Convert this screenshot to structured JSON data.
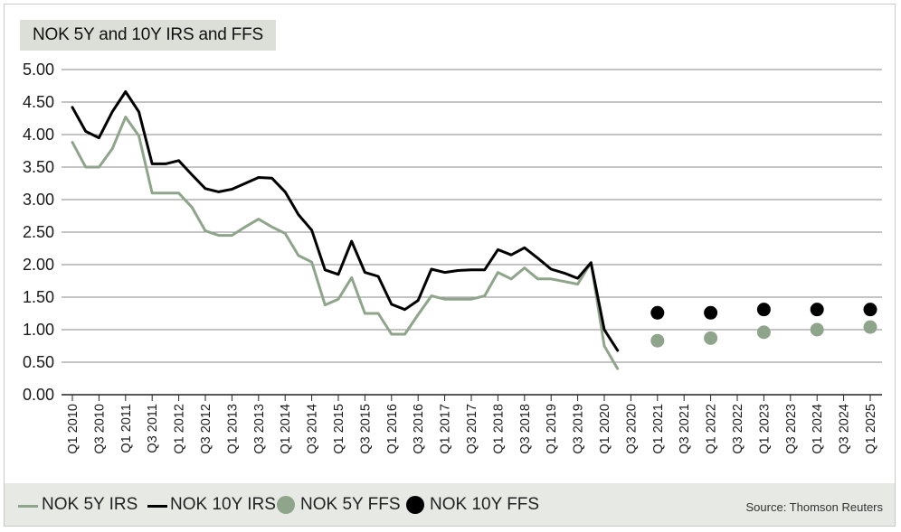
{
  "title": "NOK 5Y and 10Y IRS and FFS",
  "source": "Source: Thomson Reuters",
  "colors": {
    "irs5": "#8fa58b",
    "irs10": "#000000",
    "ffs5": "#8fa58b",
    "ffs10": "#000000",
    "grid": "#8a8a8a",
    "title_bg": "#dcdfd8",
    "footer_bg": "#e7e9e4"
  },
  "legend": [
    {
      "label": "NOK 5Y IRS",
      "kind": "line",
      "color": "#8fa58b"
    },
    {
      "label": "NOK 10Y IRS",
      "kind": "line",
      "color": "#000000"
    },
    {
      "label": "NOK 5Y FFS",
      "kind": "dot",
      "color": "#8fa58b"
    },
    {
      "label": "NOK 10Y FFS",
      "kind": "dot",
      "color": "#000000"
    }
  ],
  "chart_data": {
    "type": "line",
    "ylim": [
      0,
      5
    ],
    "y_ticks": [
      "0.00",
      "0.50",
      "1.00",
      "1.50",
      "2.00",
      "2.50",
      "3.00",
      "3.50",
      "4.00",
      "4.50",
      "5.00"
    ],
    "x_ticks": [
      "Q1 2010",
      "Q3 2010",
      "Q1 2011",
      "Q3 2011",
      "Q1 2012",
      "Q3 2012",
      "Q1 2013",
      "Q3 2013",
      "Q1 2014",
      "Q3 2014",
      "Q1 2015",
      "Q3 2015",
      "Q1 2016",
      "Q3 2016",
      "Q1 2017",
      "Q3 2017",
      "Q1 2018",
      "Q3 2018",
      "Q1 2019",
      "Q3 2019",
      "Q1 2020",
      "Q3 2020",
      "Q1 2021",
      "Q3 2021",
      "Q1 2022",
      "Q3 2022",
      "Q1 2023",
      "Q3 2023",
      "Q1 2024",
      "Q3 2024",
      "Q1 2025"
    ],
    "grid": true,
    "series": [
      {
        "name": "NOK 5Y IRS",
        "type": "line",
        "x": [
          0,
          0.5,
          1,
          1.5,
          2,
          2.5,
          3,
          3.5,
          4,
          4.5,
          5,
          5.5,
          6,
          6.5,
          7,
          7.5,
          8,
          8.5,
          9,
          9.5,
          10,
          10.5,
          11,
          11.5,
          12,
          12.5,
          13,
          13.5,
          14,
          14.5,
          15,
          15.5,
          16,
          16.5,
          17,
          17.5,
          18,
          18.5,
          19,
          19.5,
          20,
          20.5
        ],
        "values": [
          3.88,
          3.5,
          3.5,
          3.78,
          4.27,
          3.98,
          3.1,
          3.1,
          3.1,
          2.88,
          2.52,
          2.45,
          2.45,
          2.58,
          2.7,
          2.58,
          2.48,
          2.14,
          2.04,
          1.38,
          1.47,
          1.8,
          1.25,
          1.25,
          0.93,
          0.93,
          1.23,
          1.52,
          1.47,
          1.47,
          1.47,
          1.52,
          1.88,
          1.78,
          1.95,
          1.78,
          1.78,
          1.74,
          1.7,
          2.03,
          0.75,
          0.4
        ]
      },
      {
        "name": "NOK 10Y IRS",
        "type": "line",
        "x": [
          0,
          0.5,
          1,
          1.5,
          2,
          2.5,
          3,
          3.5,
          4,
          4.5,
          5,
          5.5,
          6,
          6.5,
          7,
          7.5,
          8,
          8.5,
          9,
          9.5,
          10,
          10.5,
          11,
          11.5,
          12,
          12.5,
          13,
          13.5,
          14,
          14.5,
          15,
          15.5,
          16,
          16.5,
          17,
          17.5,
          18,
          18.5,
          19,
          19.5,
          20,
          20.5
        ],
        "values": [
          4.42,
          4.05,
          3.95,
          4.35,
          4.66,
          4.35,
          3.55,
          3.55,
          3.6,
          3.38,
          3.17,
          3.12,
          3.16,
          3.25,
          3.34,
          3.33,
          3.12,
          2.77,
          2.53,
          1.92,
          1.85,
          2.36,
          1.88,
          1.82,
          1.39,
          1.31,
          1.45,
          1.93,
          1.88,
          1.91,
          1.92,
          1.92,
          2.23,
          2.15,
          2.26,
          2.1,
          1.93,
          1.87,
          1.79,
          2.03,
          1.0,
          0.68
        ]
      },
      {
        "name": "NOK 5Y FFS",
        "type": "scatter",
        "x": [
          22,
          24,
          26,
          28,
          30
        ],
        "values": [
          0.83,
          0.87,
          0.96,
          1.0,
          1.04
        ]
      },
      {
        "name": "NOK 10Y FFS",
        "type": "scatter",
        "x": [
          22,
          24,
          26,
          28,
          30
        ],
        "values": [
          1.26,
          1.26,
          1.31,
          1.31,
          1.31
        ]
      }
    ]
  }
}
